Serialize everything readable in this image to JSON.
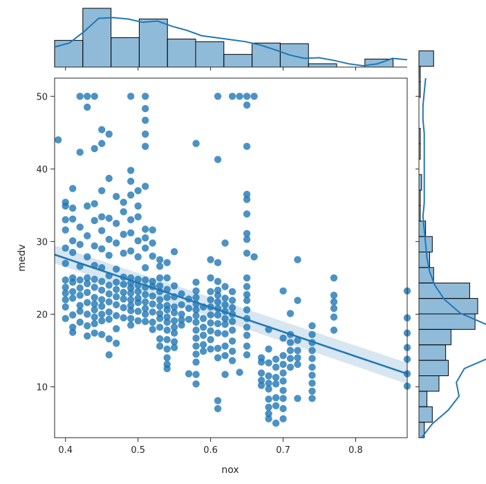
{
  "chart_data": {
    "type": "scatter",
    "xlabel": "nox",
    "ylabel": "medv",
    "xlim": [
      0.385,
      0.871
    ],
    "ylim": [
      3.0,
      52.5
    ],
    "xticks": [
      "0.4",
      "0.5",
      "0.6",
      "0.7",
      "0.8"
    ],
    "yticks": [
      "10",
      "20",
      "30",
      "40",
      "50"
    ],
    "color": "#1f77b4",
    "grid": false,
    "regression": {
      "x": [
        0.385,
        0.871
      ],
      "y": [
        28.2,
        11.8
      ],
      "ci_lower": [
        27.0,
        10.4
      ],
      "ci_upper": [
        29.5,
        13.3
      ]
    },
    "points": [
      [
        0.39,
        44.0
      ],
      [
        0.4,
        35.4
      ],
      [
        0.4,
        34.9
      ],
      [
        0.4,
        33.0
      ],
      [
        0.4,
        31.6
      ],
      [
        0.4,
        29.1
      ],
      [
        0.4,
        27.0
      ],
      [
        0.4,
        24.7
      ],
      [
        0.4,
        23.7
      ],
      [
        0.4,
        22.9
      ],
      [
        0.4,
        22.0
      ],
      [
        0.4,
        21.0
      ],
      [
        0.4,
        19.4
      ],
      [
        0.41,
        37.3
      ],
      [
        0.41,
        34.6
      ],
      [
        0.41,
        33.1
      ],
      [
        0.41,
        30.1
      ],
      [
        0.41,
        28.5
      ],
      [
        0.41,
        25.0
      ],
      [
        0.41,
        24.4
      ],
      [
        0.41,
        23.1
      ],
      [
        0.41,
        22.2
      ],
      [
        0.41,
        19.9
      ],
      [
        0.41,
        18.2
      ],
      [
        0.41,
        17.5
      ],
      [
        0.42,
        50.0
      ],
      [
        0.42,
        42.3
      ],
      [
        0.42,
        32.0
      ],
      [
        0.42,
        29.6
      ],
      [
        0.42,
        26.6
      ],
      [
        0.42,
        24.7
      ],
      [
        0.42,
        23.6
      ],
      [
        0.42,
        22.6
      ],
      [
        0.42,
        21.2
      ],
      [
        0.42,
        20.4
      ],
      [
        0.42,
        18.9
      ],
      [
        0.43,
        50.0
      ],
      [
        0.43,
        48.5
      ],
      [
        0.43,
        34.9
      ],
      [
        0.43,
        30.8
      ],
      [
        0.43,
        27.9
      ],
      [
        0.43,
        25.0
      ],
      [
        0.43,
        24.2
      ],
      [
        0.43,
        23.0
      ],
      [
        0.43,
        21.6
      ],
      [
        0.43,
        20.0
      ],
      [
        0.43,
        18.4
      ],
      [
        0.43,
        17.0
      ],
      [
        0.44,
        50.0
      ],
      [
        0.44,
        42.8
      ],
      [
        0.44,
        35.2
      ],
      [
        0.44,
        32.9
      ],
      [
        0.44,
        29.4
      ],
      [
        0.44,
        26.7
      ],
      [
        0.44,
        24.8
      ],
      [
        0.44,
        23.7
      ],
      [
        0.44,
        22.3
      ],
      [
        0.44,
        21.4
      ],
      [
        0.44,
        20.6
      ],
      [
        0.44,
        19.6
      ],
      [
        0.44,
        18.7
      ],
      [
        0.44,
        17.4
      ],
      [
        0.45,
        45.4
      ],
      [
        0.45,
        43.5
      ],
      [
        0.45,
        37.0
      ],
      [
        0.45,
        33.4
      ],
      [
        0.45,
        31.5
      ],
      [
        0.45,
        29.0
      ],
      [
        0.45,
        26.4
      ],
      [
        0.45,
        24.5
      ],
      [
        0.45,
        23.3
      ],
      [
        0.45,
        22.0
      ],
      [
        0.45,
        21.1
      ],
      [
        0.45,
        20.0
      ],
      [
        0.45,
        19.1
      ],
      [
        0.45,
        17.2
      ],
      [
        0.46,
        44.8
      ],
      [
        0.46,
        38.7
      ],
      [
        0.46,
        33.2
      ],
      [
        0.46,
        30.3
      ],
      [
        0.46,
        28.1
      ],
      [
        0.46,
        25.3
      ],
      [
        0.46,
        24.0
      ],
      [
        0.46,
        22.8
      ],
      [
        0.46,
        21.7
      ],
      [
        0.46,
        20.3
      ],
      [
        0.46,
        19.3
      ],
      [
        0.46,
        16.6
      ],
      [
        0.46,
        14.4
      ],
      [
        0.47,
        36.2
      ],
      [
        0.47,
        32.5
      ],
      [
        0.47,
        29.8
      ],
      [
        0.47,
        26.2
      ],
      [
        0.47,
        24.4
      ],
      [
        0.47,
        23.4
      ],
      [
        0.47,
        22.4
      ],
      [
        0.47,
        21.3
      ],
      [
        0.47,
        19.8
      ],
      [
        0.47,
        18.0
      ],
      [
        0.47,
        16.0
      ],
      [
        0.48,
        35.4
      ],
      [
        0.48,
        34.1
      ],
      [
        0.48,
        31.0
      ],
      [
        0.48,
        28.4
      ],
      [
        0.48,
        25.1
      ],
      [
        0.48,
        24.1
      ],
      [
        0.48,
        23.0
      ],
      [
        0.48,
        22.1
      ],
      [
        0.48,
        20.9
      ],
      [
        0.48,
        19.5
      ],
      [
        0.49,
        50.0
      ],
      [
        0.49,
        39.8
      ],
      [
        0.49,
        38.3
      ],
      [
        0.49,
        36.4
      ],
      [
        0.49,
        33.0
      ],
      [
        0.49,
        31.2
      ],
      [
        0.49,
        28.7
      ],
      [
        0.49,
        25.0
      ],
      [
        0.49,
        24.3
      ],
      [
        0.49,
        23.6
      ],
      [
        0.49,
        22.9
      ],
      [
        0.49,
        22.0
      ],
      [
        0.49,
        21.2
      ],
      [
        0.49,
        20.5
      ],
      [
        0.49,
        19.4
      ],
      [
        0.49,
        18.5
      ],
      [
        0.5,
        37.0
      ],
      [
        0.5,
        34.9
      ],
      [
        0.5,
        33.4
      ],
      [
        0.5,
        30.1
      ],
      [
        0.5,
        27.9
      ],
      [
        0.5,
        24.8
      ],
      [
        0.5,
        24.0
      ],
      [
        0.5,
        23.1
      ],
      [
        0.5,
        22.2
      ],
      [
        0.5,
        21.6
      ],
      [
        0.5,
        20.4
      ],
      [
        0.5,
        19.1
      ],
      [
        0.51,
        50.0
      ],
      [
        0.51,
        48.3
      ],
      [
        0.51,
        46.7
      ],
      [
        0.51,
        44.8
      ],
      [
        0.51,
        43.1
      ],
      [
        0.51,
        37.6
      ],
      [
        0.51,
        31.7
      ],
      [
        0.51,
        30.5
      ],
      [
        0.51,
        29.1
      ],
      [
        0.51,
        26.4
      ],
      [
        0.51,
        24.7
      ],
      [
        0.51,
        23.7
      ],
      [
        0.51,
        22.7
      ],
      [
        0.51,
        21.7
      ],
      [
        0.51,
        20.8
      ],
      [
        0.51,
        20.0
      ],
      [
        0.51,
        19.0
      ],
      [
        0.52,
        31.6
      ],
      [
        0.52,
        29.8
      ],
      [
        0.52,
        28.0
      ],
      [
        0.52,
        24.5
      ],
      [
        0.52,
        23.8
      ],
      [
        0.52,
        22.5
      ],
      [
        0.52,
        21.4
      ],
      [
        0.52,
        20.3
      ],
      [
        0.52,
        18.9
      ],
      [
        0.52,
        17.9
      ],
      [
        0.53,
        27.5
      ],
      [
        0.53,
        26.6
      ],
      [
        0.53,
        25.0
      ],
      [
        0.53,
        23.9
      ],
      [
        0.53,
        23.1
      ],
      [
        0.53,
        22.0
      ],
      [
        0.53,
        21.1
      ],
      [
        0.53,
        20.1
      ],
      [
        0.53,
        19.4
      ],
      [
        0.53,
        18.2
      ],
      [
        0.53,
        16.6
      ],
      [
        0.53,
        15.6
      ],
      [
        0.54,
        27.1
      ],
      [
        0.54,
        25.0
      ],
      [
        0.54,
        23.4
      ],
      [
        0.54,
        22.3
      ],
      [
        0.54,
        21.2
      ],
      [
        0.54,
        20.6
      ],
      [
        0.54,
        19.6
      ],
      [
        0.54,
        18.9
      ],
      [
        0.54,
        17.8
      ],
      [
        0.54,
        16.5
      ],
      [
        0.54,
        15.2
      ],
      [
        0.54,
        14.0
      ],
      [
        0.54,
        13.1
      ],
      [
        0.54,
        12.5
      ],
      [
        0.55,
        28.6
      ],
      [
        0.55,
        23.9
      ],
      [
        0.55,
        22.4
      ],
      [
        0.55,
        21.0
      ],
      [
        0.55,
        20.2
      ],
      [
        0.55,
        19.1
      ],
      [
        0.55,
        18.2
      ],
      [
        0.55,
        17.4
      ],
      [
        0.55,
        16.2
      ],
      [
        0.55,
        15.4
      ],
      [
        0.56,
        22.8
      ],
      [
        0.56,
        21.3
      ],
      [
        0.56,
        20.0
      ],
      [
        0.56,
        19.2
      ],
      [
        0.56,
        18.5
      ],
      [
        0.57,
        22.1
      ],
      [
        0.57,
        20.8
      ],
      [
        0.57,
        19.3
      ],
      [
        0.57,
        11.8
      ],
      [
        0.58,
        43.5
      ],
      [
        0.58,
        24.4
      ],
      [
        0.58,
        23.2
      ],
      [
        0.58,
        22.3
      ],
      [
        0.58,
        21.4
      ],
      [
        0.58,
        20.6
      ],
      [
        0.58,
        19.8
      ],
      [
        0.58,
        18.9
      ],
      [
        0.58,
        17.8
      ],
      [
        0.58,
        16.7
      ],
      [
        0.58,
        15.6
      ],
      [
        0.58,
        14.5
      ],
      [
        0.58,
        13.4
      ],
      [
        0.58,
        11.7
      ],
      [
        0.58,
        10.4
      ],
      [
        0.59,
        21.0
      ],
      [
        0.59,
        19.4
      ],
      [
        0.59,
        18.2
      ],
      [
        0.59,
        17.1
      ],
      [
        0.59,
        15.8
      ],
      [
        0.59,
        14.9
      ],
      [
        0.6,
        27.5
      ],
      [
        0.6,
        25.0
      ],
      [
        0.6,
        23.1
      ],
      [
        0.6,
        22.0
      ],
      [
        0.6,
        21.0
      ],
      [
        0.6,
        19.9
      ],
      [
        0.6,
        18.8
      ],
      [
        0.6,
        17.7
      ],
      [
        0.6,
        16.5
      ],
      [
        0.6,
        15.2
      ],
      [
        0.61,
        50.0
      ],
      [
        0.61,
        41.3
      ],
      [
        0.61,
        27.1
      ],
      [
        0.61,
        24.5
      ],
      [
        0.61,
        23.3
      ],
      [
        0.61,
        22.6
      ],
      [
        0.61,
        21.7
      ],
      [
        0.61,
        20.8
      ],
      [
        0.61,
        19.9
      ],
      [
        0.61,
        18.7
      ],
      [
        0.61,
        17.4
      ],
      [
        0.61,
        15.3
      ],
      [
        0.61,
        14.0
      ],
      [
        0.61,
        8.1
      ],
      [
        0.61,
        7.0
      ],
      [
        0.62,
        29.8
      ],
      [
        0.62,
        23.8
      ],
      [
        0.62,
        22.2
      ],
      [
        0.62,
        21.3
      ],
      [
        0.62,
        20.4
      ],
      [
        0.62,
        19.4
      ],
      [
        0.62,
        18.6
      ],
      [
        0.62,
        17.3
      ],
      [
        0.62,
        15.6
      ],
      [
        0.62,
        14.3
      ],
      [
        0.62,
        11.7
      ],
      [
        0.63,
        50.0
      ],
      [
        0.63,
        23.1
      ],
      [
        0.63,
        21.9
      ],
      [
        0.63,
        20.9
      ],
      [
        0.63,
        20.0
      ],
      [
        0.63,
        19.0
      ],
      [
        0.63,
        17.8
      ],
      [
        0.63,
        16.3
      ],
      [
        0.63,
        14.9
      ],
      [
        0.63,
        13.6
      ],
      [
        0.64,
        50.0
      ],
      [
        0.64,
        12.0
      ],
      [
        0.65,
        50.0
      ],
      [
        0.65,
        48.8
      ],
      [
        0.65,
        43.1
      ],
      [
        0.65,
        36.5
      ],
      [
        0.65,
        35.8
      ],
      [
        0.65,
        33.8
      ],
      [
        0.65,
        31.1
      ],
      [
        0.65,
        30.3
      ],
      [
        0.65,
        28.4
      ],
      [
        0.65,
        25.0
      ],
      [
        0.65,
        23.8
      ],
      [
        0.65,
        22.7
      ],
      [
        0.65,
        21.9
      ],
      [
        0.65,
        20.6
      ],
      [
        0.65,
        19.4
      ],
      [
        0.65,
        18.2
      ],
      [
        0.65,
        17.1
      ],
      [
        0.65,
        15.6
      ],
      [
        0.65,
        14.4
      ],
      [
        0.66,
        50.0
      ],
      [
        0.66,
        27.9
      ],
      [
        0.67,
        14.0
      ],
      [
        0.67,
        13.4
      ],
      [
        0.67,
        11.9
      ],
      [
        0.67,
        10.9
      ],
      [
        0.67,
        10.2
      ],
      [
        0.68,
        17.9
      ],
      [
        0.68,
        15.2
      ],
      [
        0.68,
        13.3
      ],
      [
        0.68,
        11.5
      ],
      [
        0.68,
        10.5
      ],
      [
        0.68,
        9.7
      ],
      [
        0.68,
        8.3
      ],
      [
        0.68,
        7.2
      ],
      [
        0.68,
        6.3
      ],
      [
        0.68,
        5.6
      ],
      [
        0.69,
        13.8
      ],
      [
        0.69,
        12.7
      ],
      [
        0.69,
        11.3
      ],
      [
        0.69,
        10.4
      ],
      [
        0.69,
        8.5
      ],
      [
        0.69,
        7.4
      ],
      [
        0.69,
        5.0
      ],
      [
        0.7,
        23.2
      ],
      [
        0.7,
        16.7
      ],
      [
        0.7,
        14.3
      ],
      [
        0.7,
        13.1
      ],
      [
        0.7,
        11.9
      ],
      [
        0.7,
        10.8
      ],
      [
        0.7,
        9.5
      ],
      [
        0.7,
        8.4
      ],
      [
        0.7,
        7.0
      ],
      [
        0.7,
        5.6
      ],
      [
        0.71,
        20.1
      ],
      [
        0.71,
        17.2
      ],
      [
        0.71,
        16.1
      ],
      [
        0.71,
        15.0
      ],
      [
        0.71,
        13.9
      ],
      [
        0.71,
        12.7
      ],
      [
        0.72,
        27.5
      ],
      [
        0.72,
        21.9
      ],
      [
        0.72,
        16.4
      ],
      [
        0.72,
        15.0
      ],
      [
        0.72,
        14.0
      ],
      [
        0.72,
        13.1
      ],
      [
        0.72,
        8.4
      ],
      [
        0.74,
        18.4
      ],
      [
        0.74,
        17.2
      ],
      [
        0.74,
        16.1
      ],
      [
        0.74,
        15.0
      ],
      [
        0.74,
        13.9
      ],
      [
        0.74,
        12.7
      ],
      [
        0.74,
        11.6
      ],
      [
        0.74,
        10.5
      ],
      [
        0.74,
        9.4
      ],
      [
        0.74,
        8.4
      ],
      [
        0.77,
        25.0
      ],
      [
        0.77,
        22.6
      ],
      [
        0.77,
        21.7
      ],
      [
        0.77,
        20.8
      ],
      [
        0.77,
        19.6
      ],
      [
        0.77,
        17.8
      ],
      [
        0.871,
        23.2
      ],
      [
        0.871,
        19.5
      ],
      [
        0.871,
        17.4
      ],
      [
        0.871,
        15.4
      ],
      [
        0.871,
        13.8
      ],
      [
        0.871,
        11.8
      ],
      [
        0.871,
        10.1
      ]
    ],
    "marginal_x_hist": {
      "bin_start": 0.385,
      "bin_width": 0.03888,
      "counts": [
        40,
        88,
        44,
        72,
        42,
        38,
        19,
        36,
        35,
        5,
        0,
        12
      ],
      "kde": [
        30,
        36,
        53,
        73,
        74,
        72,
        67,
        69,
        61,
        55,
        47,
        44,
        41,
        38,
        33,
        26,
        18,
        13,
        14,
        10,
        5,
        2,
        5,
        13,
        11
      ]
    },
    "marginal_y_hist": {
      "bin_start": 3.0,
      "bin_width": 2.13,
      "counts": [
        4,
        10,
        6,
        15,
        22,
        20,
        24,
        42,
        44,
        38,
        11,
        8,
        10,
        5,
        1,
        1,
        2,
        0,
        1,
        1,
        0,
        0,
        1,
        1,
        11
      ],
      "kde": [
        2,
        10,
        22,
        30,
        28,
        34,
        58,
        70,
        55,
        31,
        19,
        12,
        8,
        6,
        5,
        4,
        3,
        4,
        4,
        4,
        4,
        4,
        4,
        3,
        3,
        4,
        5
      ]
    }
  }
}
